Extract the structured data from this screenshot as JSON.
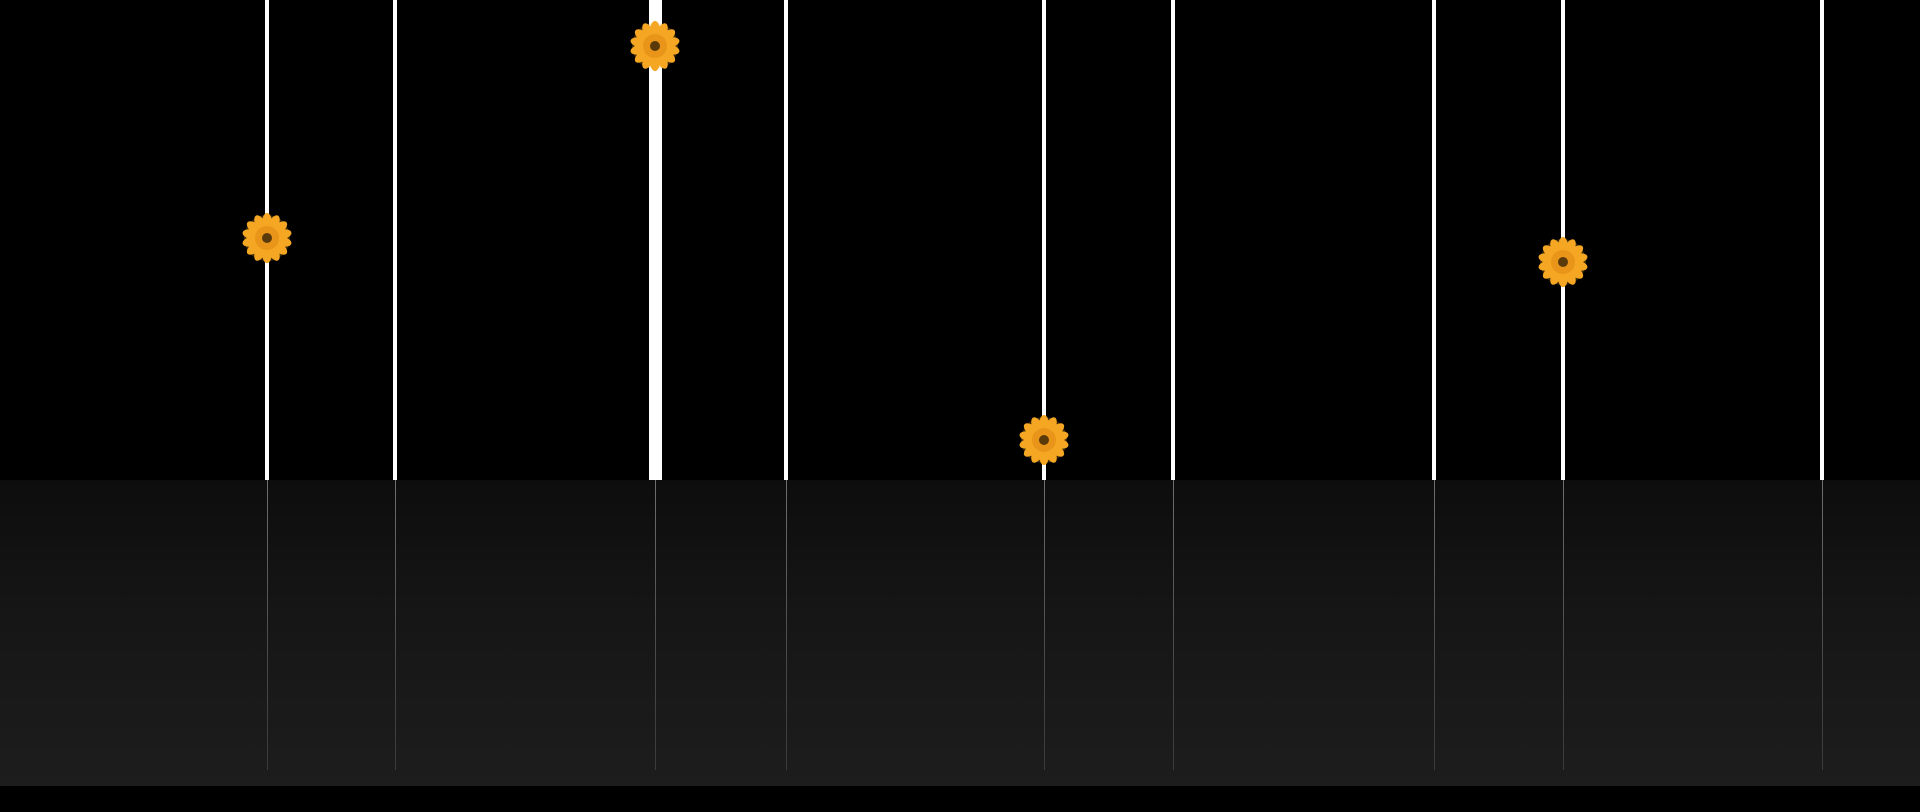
{
  "scene": {
    "background_color": "#000000",
    "line_color": "#ffffff",
    "flower_petal_color": "#f5a623",
    "flower_center_color": "#5a3a0a",
    "flower_icon": "sunflower-icon",
    "lines": [
      {
        "id": "line-1",
        "has_flower": true
      },
      {
        "id": "line-2",
        "has_flower": false
      },
      {
        "id": "line-3",
        "has_flower": true
      },
      {
        "id": "line-4",
        "has_flower": false
      },
      {
        "id": "line-5",
        "has_flower": true
      },
      {
        "id": "line-6",
        "has_flower": false
      },
      {
        "id": "line-7",
        "has_flower": false
      },
      {
        "id": "line-8",
        "has_flower": true
      },
      {
        "id": "line-9",
        "has_flower": false
      }
    ]
  }
}
